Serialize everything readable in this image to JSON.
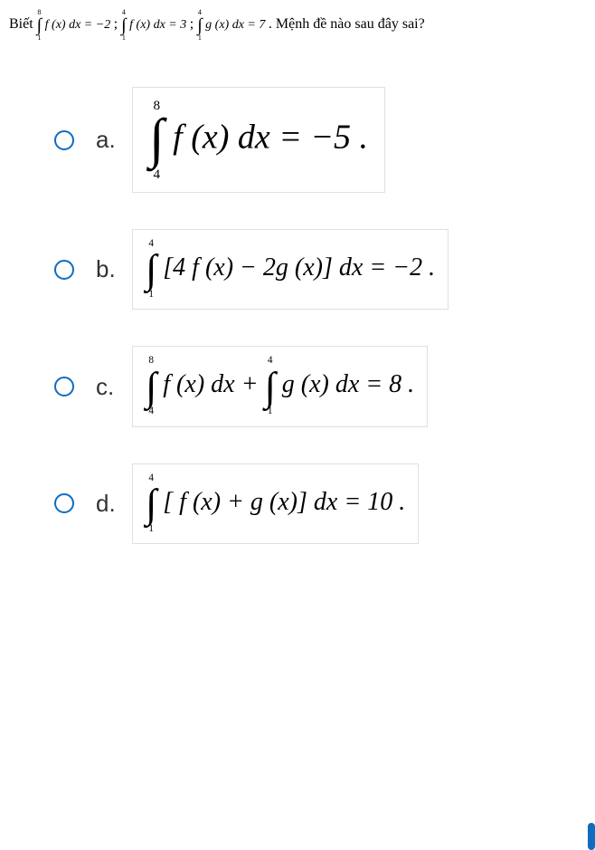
{
  "stem": {
    "prefix": "Biết ",
    "int1": {
      "upper": "8",
      "lower": "1",
      "body": "f (x) dx = −2"
    },
    "sep1": " ; ",
    "int2": {
      "upper": "4",
      "lower": "1",
      "body": "f (x) dx = 3"
    },
    "sep2": " ; ",
    "int3": {
      "upper": "4",
      "lower": "1",
      "body": "g (x) dx = 7"
    },
    "suffix": " . Mệnh đề nào sau đây sai?"
  },
  "options": {
    "a": {
      "label": "a.",
      "int1": {
        "upper": "8",
        "lower": "4"
      },
      "body": "f (x) dx = −5 ."
    },
    "b": {
      "label": "b.",
      "int1": {
        "upper": "4",
        "lower": "1"
      },
      "body": "[4 f (x) − 2g (x)] dx = −2 ."
    },
    "c": {
      "label": "c.",
      "int1": {
        "upper": "8",
        "lower": "4"
      },
      "mid1": "f (x) dx + ",
      "int2": {
        "upper": "4",
        "lower": "1"
      },
      "mid2": "g (x) dx = 8 ."
    },
    "d": {
      "label": "d.",
      "int1": {
        "upper": "4",
        "lower": "1"
      },
      "body": "[ f (x) + g (x)] dx = 10 ."
    }
  }
}
